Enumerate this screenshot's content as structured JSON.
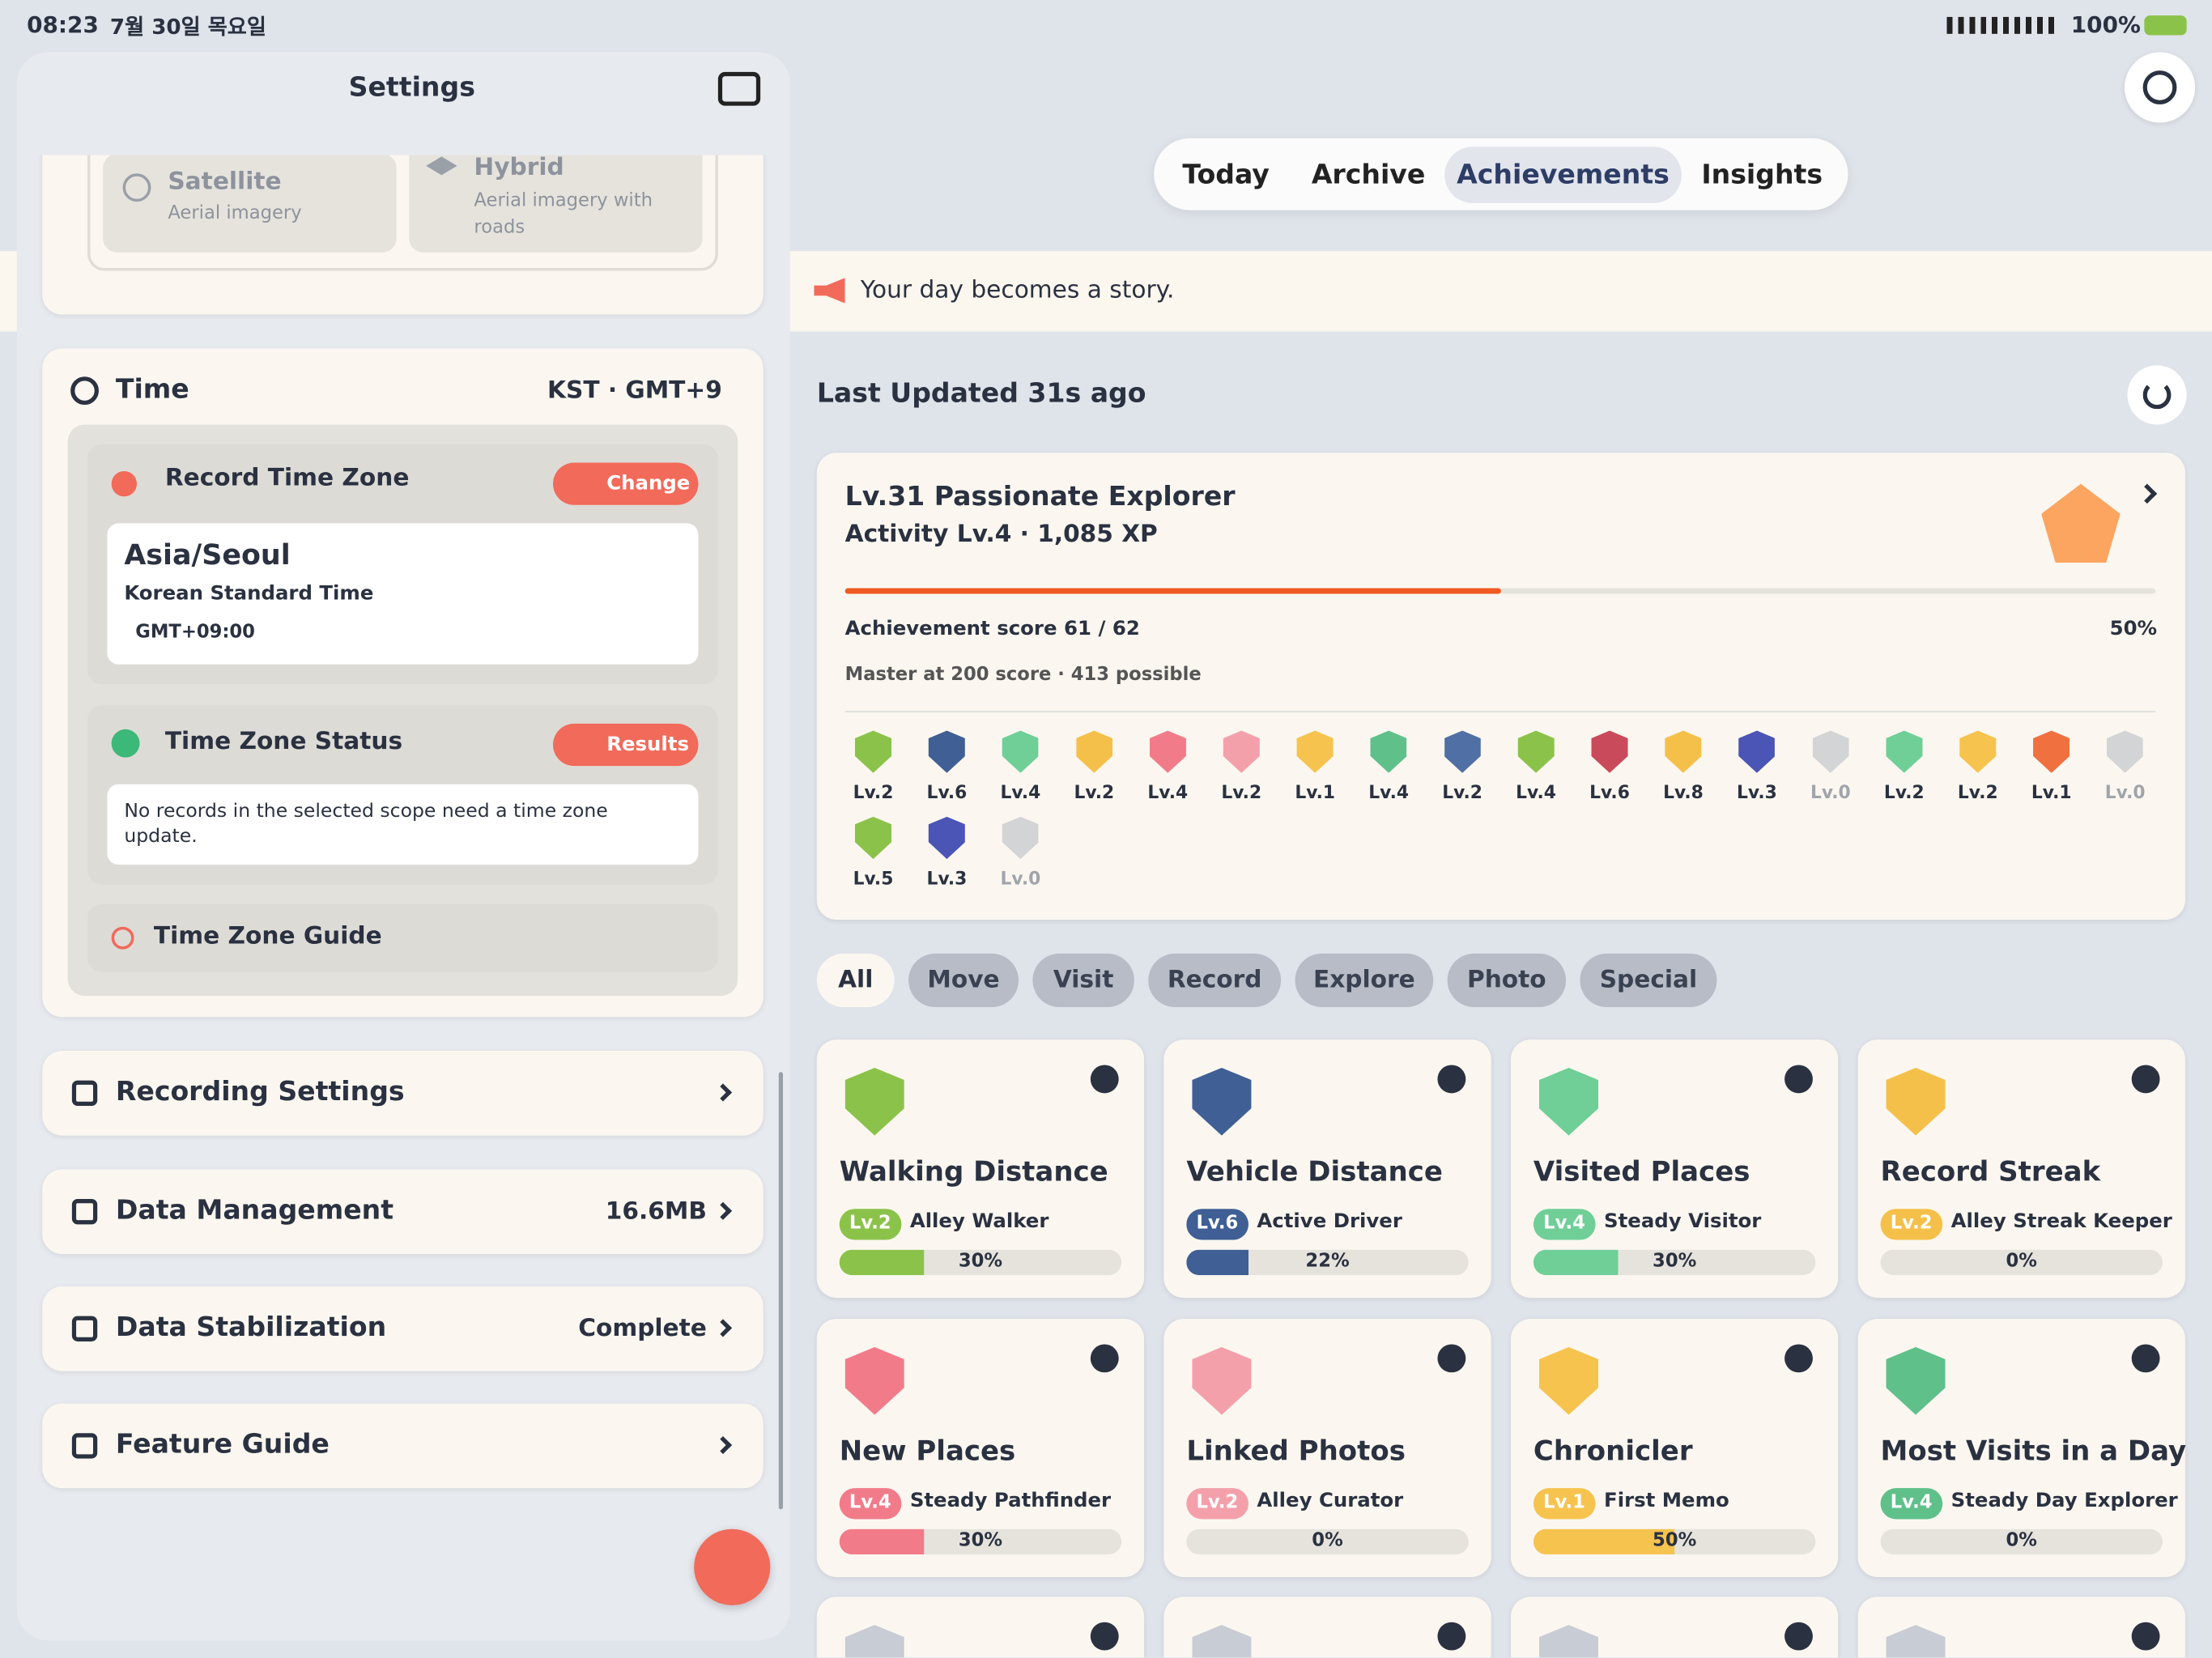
{
  "status": {
    "time": "08:23",
    "date": "7월 30일 목요일",
    "battery": "100%"
  },
  "sidebar": {
    "title": "Settings",
    "map_options": [
      {
        "name": "Satellite",
        "desc": "Aerial imagery"
      },
      {
        "name": "Hybrid",
        "desc": "Aerial imagery with roads"
      }
    ],
    "time": {
      "title": "Time",
      "value": "KST · GMT+9",
      "record": {
        "title": "Record Time Zone",
        "button": "Change",
        "zone": "Asia/Seoul",
        "zone_name": "Korean Standard Time",
        "offset": "GMT+09:00"
      },
      "status": {
        "title": "Time Zone Status",
        "button": "Results",
        "message": "No records in the selected scope need a time zone update."
      },
      "guide": "Time Zone Guide"
    },
    "menu": [
      {
        "label": "Recording Settings"
      },
      {
        "label": "Data Management",
        "value": "16.6MB"
      },
      {
        "label": "Data Stabilization",
        "value": "Complete"
      },
      {
        "label": "Feature Guide"
      }
    ]
  },
  "tabs": {
    "items": [
      "Today",
      "Archive",
      "Achievements",
      "Insights"
    ],
    "active": 2
  },
  "banner": "Your day becomes a story.",
  "updated": "Last Updated 31s ago",
  "summary": {
    "title": "Lv.31 Passionate Explorer",
    "subtitle": "Activity Lv.4 · 1,085 XP",
    "score": "Achievement score 61 / 62",
    "percent": 50,
    "percent_label": "50%",
    "note": "Master at 200 score · 413 possible",
    "badges": [
      {
        "level": "Lv.2",
        "color": "#8bc34a"
      },
      {
        "level": "Lv.6",
        "color": "#3f5f95"
      },
      {
        "level": "Lv.4",
        "color": "#6fcf97"
      },
      {
        "level": "Lv.2",
        "color": "#f5c04a"
      },
      {
        "level": "Lv.4",
        "color": "#f27b8a"
      },
      {
        "level": "Lv.2",
        "color": "#f4a0aa"
      },
      {
        "level": "Lv.1",
        "color": "#f6c34f"
      },
      {
        "level": "Lv.4",
        "color": "#5fc08a"
      },
      {
        "level": "Lv.2",
        "color": "#4f6fa5"
      },
      {
        "level": "Lv.4",
        "color": "#8bc34a"
      },
      {
        "level": "Lv.6",
        "color": "#c94a5a"
      },
      {
        "level": "Lv.8",
        "color": "#f5c04a"
      },
      {
        "level": "Lv.3",
        "color": "#4a55b5"
      },
      {
        "level": "Lv.0",
        "color": "#b8bcc4"
      },
      {
        "level": "Lv.2",
        "color": "#6fcf97"
      },
      {
        "level": "Lv.2",
        "color": "#f6c34f"
      },
      {
        "level": "Lv.1",
        "color": "#f07040"
      },
      {
        "level": "Lv.0",
        "color": "#b8bcc4"
      },
      {
        "level": "Lv.5",
        "color": "#8bc34a"
      },
      {
        "level": "Lv.3",
        "color": "#4a55b5"
      },
      {
        "level": "Lv.0",
        "color": "#b8bcc4"
      }
    ]
  },
  "filters": {
    "items": [
      "All",
      "Move",
      "Visit",
      "Record",
      "Explore",
      "Photo",
      "Special"
    ],
    "active": 0
  },
  "cards": [
    {
      "title": "Walking Distance",
      "level": "Lv.2",
      "rank": "Alley Walker",
      "progress": 30,
      "progress_label": "30%",
      "color": "#8bc34a"
    },
    {
      "title": "Vehicle Distance",
      "level": "Lv.6",
      "rank": "Active Driver",
      "progress": 22,
      "progress_label": "22%",
      "color": "#3f5f95"
    },
    {
      "title": "Visited Places",
      "level": "Lv.4",
      "rank": "Steady Visitor",
      "progress": 30,
      "progress_label": "30%",
      "color": "#6fcf97"
    },
    {
      "title": "Record Streak",
      "level": "Lv.2",
      "rank": "Alley Streak Keeper",
      "progress": 0,
      "progress_label": "0%",
      "color": "#f5c04a"
    },
    {
      "title": "New Places",
      "level": "Lv.4",
      "rank": "Steady Pathfinder",
      "progress": 30,
      "progress_label": "30%",
      "color": "#f27b8a"
    },
    {
      "title": "Linked Photos",
      "level": "Lv.2",
      "rank": "Alley Curator",
      "progress": 0,
      "progress_label": "0%",
      "color": "#f4a0aa"
    },
    {
      "title": "Chronicler",
      "level": "Lv.1",
      "rank": "First Memo",
      "progress": 50,
      "progress_label": "50%",
      "color": "#f6c34f"
    },
    {
      "title": "Most Visits in a Day",
      "level": "Lv.4",
      "rank": "Steady Day Explorer",
      "progress": 0,
      "progress_label": "0%",
      "color": "#5fc08a"
    }
  ]
}
